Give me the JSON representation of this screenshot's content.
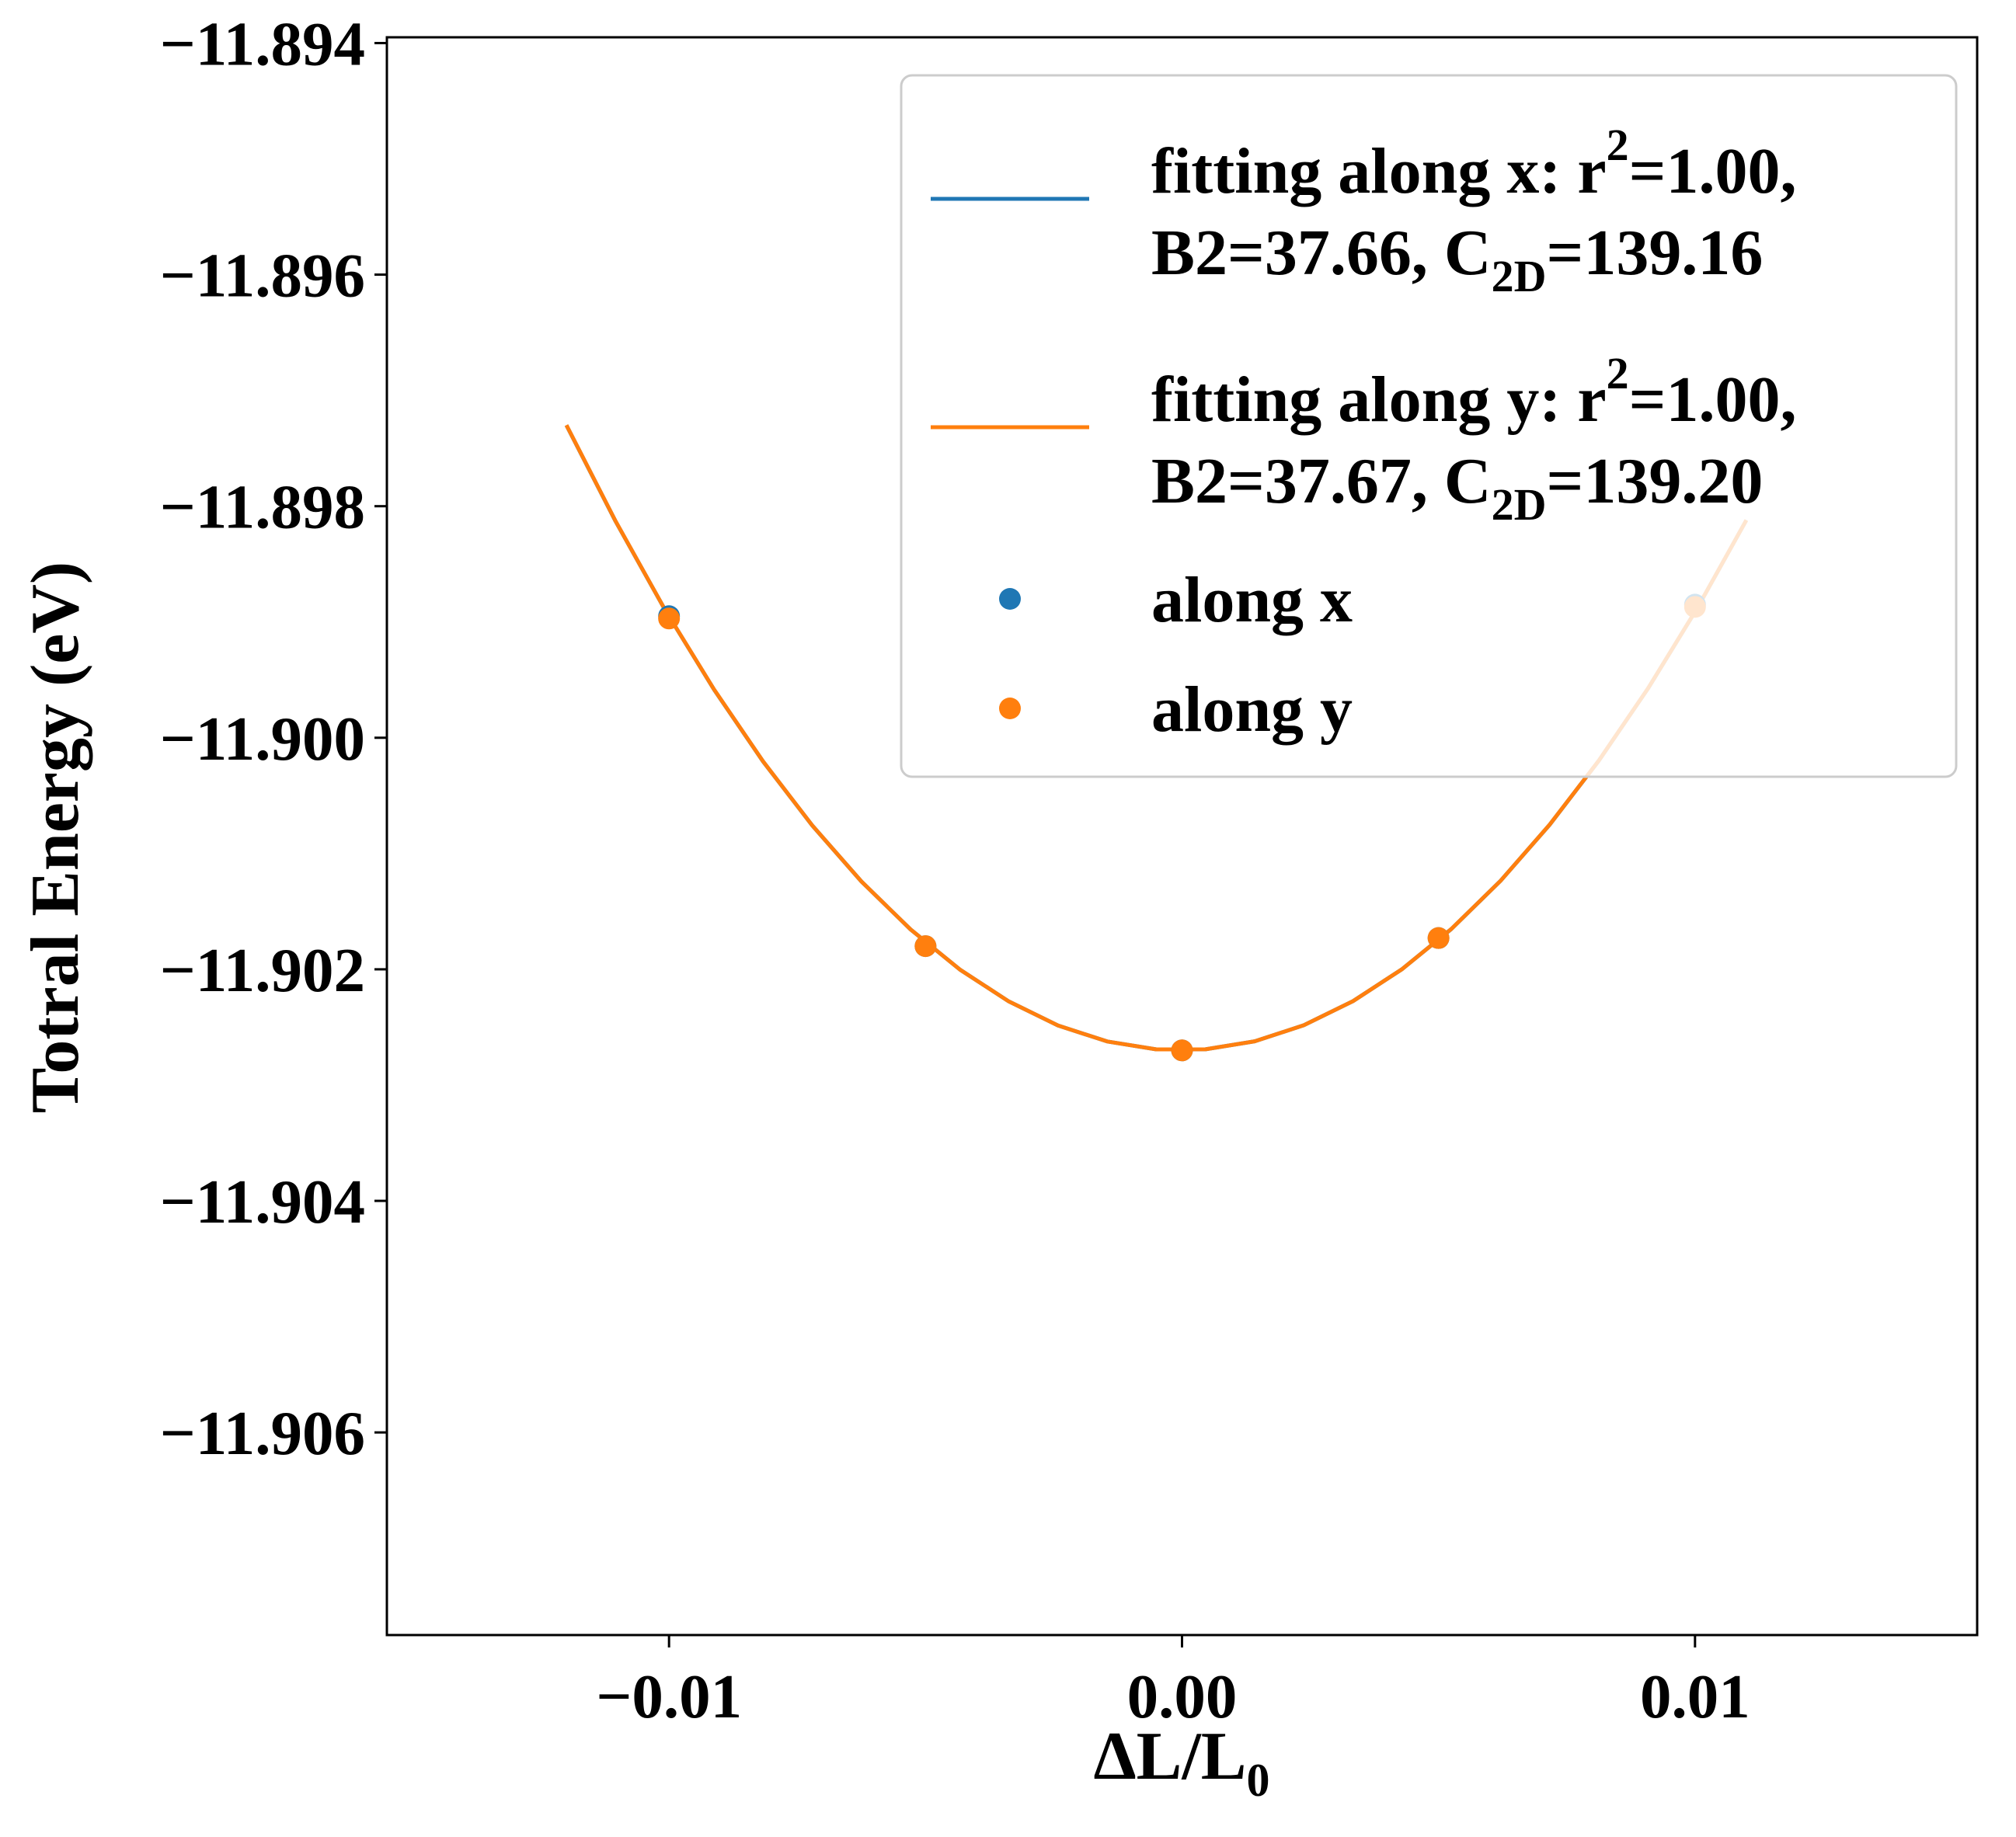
{
  "chart_data": {
    "type": "line",
    "xlabel": "ΔL/L",
    "xlabel_sub": "0",
    "ylabel": "Totral Energy (eV)",
    "xlim": [
      -0.0155,
      0.0155
    ],
    "ylim": [
      -11.90775,
      -11.89395
    ],
    "xticks": [
      -0.01,
      0.0,
      0.01
    ],
    "xtick_labels": [
      "−0.01",
      "0.00",
      "0.01"
    ],
    "yticks": [
      -11.894,
      -11.896,
      -11.898,
      -11.9,
      -11.902,
      -11.904,
      -11.906
    ],
    "ytick_labels": [
      "−11.894",
      "−11.896",
      "−11.898",
      "−11.900",
      "−11.902",
      "−11.904",
      "−11.906"
    ],
    "grid": false,
    "legend_position": "top-right",
    "fit_x_range": [
      -0.012,
      0.011
    ],
    "series": [
      {
        "name": "fitting along x: r²=1.00, B2=37.66, C2D=139.16",
        "kind": "line",
        "color": "#1f77b4",
        "legend_line1": {
          "text": "fitting along x: r",
          "sup": "2",
          "tail": "=1.00,"
        },
        "legend_line2": {
          "text": "B2=37.66, C",
          "sub": "2D",
          "tail": "=139.16"
        },
        "coeffs": {
          "a": 37.66,
          "b": 0.002,
          "c": -11.9027
        }
      },
      {
        "name": "fitting along y: r²=1.00, B2=37.67, C2D=139.20",
        "kind": "line",
        "color": "#ff7f0e",
        "legend_line1": {
          "text": "fitting along y: r",
          "sup": "2",
          "tail": "=1.00,"
        },
        "legend_line2": {
          "text": "B2=37.67, C",
          "sub": "2D",
          "tail": "=139.20"
        },
        "coeffs": {
          "a": 37.67,
          "b": 0.002,
          "c": -11.9027
        }
      },
      {
        "name": "along x",
        "kind": "scatter",
        "color": "#1f77b4",
        "x": [
          -0.01,
          -0.005,
          0.0,
          0.005,
          0.01
        ],
        "y": [
          -11.89895,
          -11.9018,
          -11.9027,
          -11.90173,
          -11.89885
        ]
      },
      {
        "name": "along y",
        "kind": "scatter",
        "color": "#ff7f0e",
        "x": [
          -0.01,
          -0.005,
          0.0,
          0.005,
          0.01
        ],
        "y": [
          -11.89897,
          -11.9018,
          -11.9027,
          -11.90173,
          -11.89887
        ]
      }
    ]
  }
}
